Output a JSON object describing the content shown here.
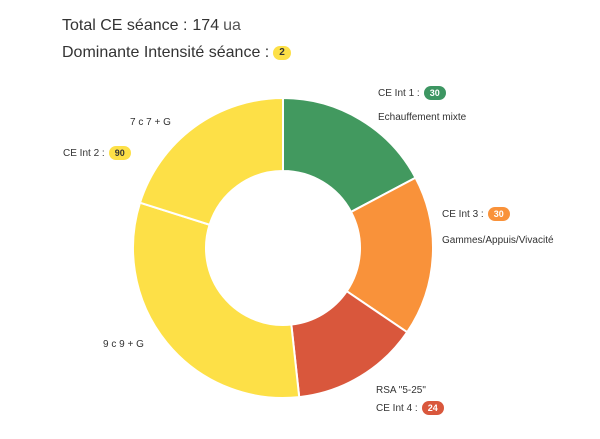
{
  "header": {
    "total_label": "Total CE séance :",
    "total_value": "174",
    "total_unit": "ua",
    "dominant_label": "Dominante Intensité séance :",
    "dominant_value": "2"
  },
  "colors": {
    "int1": "#42995f",
    "int2": "#fde047",
    "int3": "#f9923a",
    "int4": "#d9573c"
  },
  "chart_data": {
    "type": "pie",
    "donut": true,
    "slices": [
      {
        "category": "Echauffement mixte",
        "group": "CE Int 1",
        "value": 30,
        "color": "#42995f"
      },
      {
        "category": "Gammes/Appuis/Vivacité",
        "group": "CE Int 3",
        "value": 30,
        "color": "#f9923a"
      },
      {
        "category": "RSA \"5-25\"",
        "group": "CE Int 4",
        "value": 24,
        "color": "#d9573c"
      },
      {
        "category": "9 c 9 + G",
        "group": "CE Int 2",
        "value": 55,
        "color": "#fde047"
      },
      {
        "category": "7 c 7 + G",
        "group": "CE Int 2",
        "value": 35,
        "color": "#fde047"
      }
    ],
    "labels": {
      "int1": {
        "text": "CE Int 1 :",
        "value": "30",
        "activity": "Echauffement mixte"
      },
      "int2": {
        "text": "CE Int 2 :",
        "value": "90",
        "activities": [
          "7 c 7 + G",
          "9 c 9 + G"
        ]
      },
      "int3": {
        "text": "CE Int 3 :",
        "value": "30",
        "activity": "Gammes/Appuis/Vivacité"
      },
      "int4": {
        "text": "CE Int 4 :",
        "value": "24",
        "activity": "RSA \"5-25\""
      }
    }
  }
}
